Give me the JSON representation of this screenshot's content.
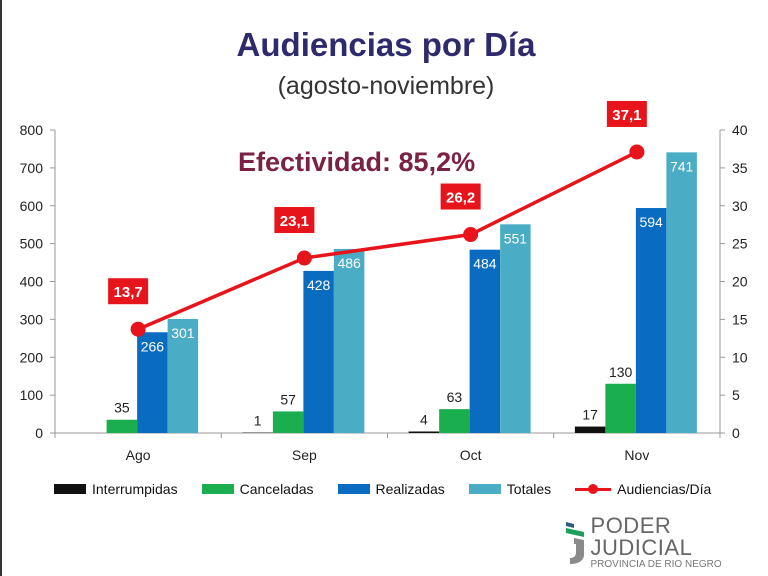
{
  "title": "Audiencias por Día",
  "subtitle": "(agosto-noviembre)",
  "annotation": "Efectividad: 85,2%",
  "colors": {
    "Interrumpidas": "#111111",
    "Canceladas": "#1aae4e",
    "Realizadas": "#0a6cc0",
    "Totales": "#4bacc6",
    "Audiencias/Día": "#e8141b"
  },
  "chart_data": {
    "type": "bar",
    "categories": [
      "Ago",
      "Sep",
      "Oct",
      "Nov"
    ],
    "series": [
      {
        "name": "Interrumpidas",
        "values": [
          0,
          1,
          4,
          17
        ],
        "labels": [
          "",
          "1",
          "4",
          "17"
        ]
      },
      {
        "name": "Canceladas",
        "values": [
          35,
          57,
          63,
          130
        ],
        "labels": [
          "35",
          "57",
          "63",
          "130"
        ]
      },
      {
        "name": "Realizadas",
        "values": [
          266,
          428,
          484,
          594
        ],
        "labels": [
          "266",
          "428",
          "484",
          "594"
        ]
      },
      {
        "name": "Totales",
        "values": [
          301,
          486,
          551,
          741
        ],
        "labels": [
          "301",
          "486",
          "551",
          "741"
        ]
      },
      {
        "name": "Audiencias/Día",
        "type": "line",
        "axis": "right",
        "values": [
          13.7,
          23.1,
          26.2,
          37.1
        ],
        "labels": [
          "13,7",
          "23,1",
          "26,2",
          "37,1"
        ]
      }
    ],
    "y_left": {
      "range": [
        0,
        800
      ],
      "ticks": [
        "0",
        "100",
        "200",
        "300",
        "400",
        "500",
        "600",
        "700",
        "800"
      ]
    },
    "y_right": {
      "range": [
        0,
        40
      ],
      "ticks": [
        "0",
        "5",
        "10",
        "15",
        "20",
        "25",
        "30",
        "35",
        "40"
      ]
    },
    "grid": false,
    "legend": "bottom"
  },
  "legend": [
    "Interrumpidas",
    "Canceladas",
    "Realizadas",
    "Totales",
    "Audiencias/Día"
  ],
  "logo": {
    "main": "PODER JUDICIAL",
    "sub": "PROVINCIA DE RIO NEGRO"
  }
}
